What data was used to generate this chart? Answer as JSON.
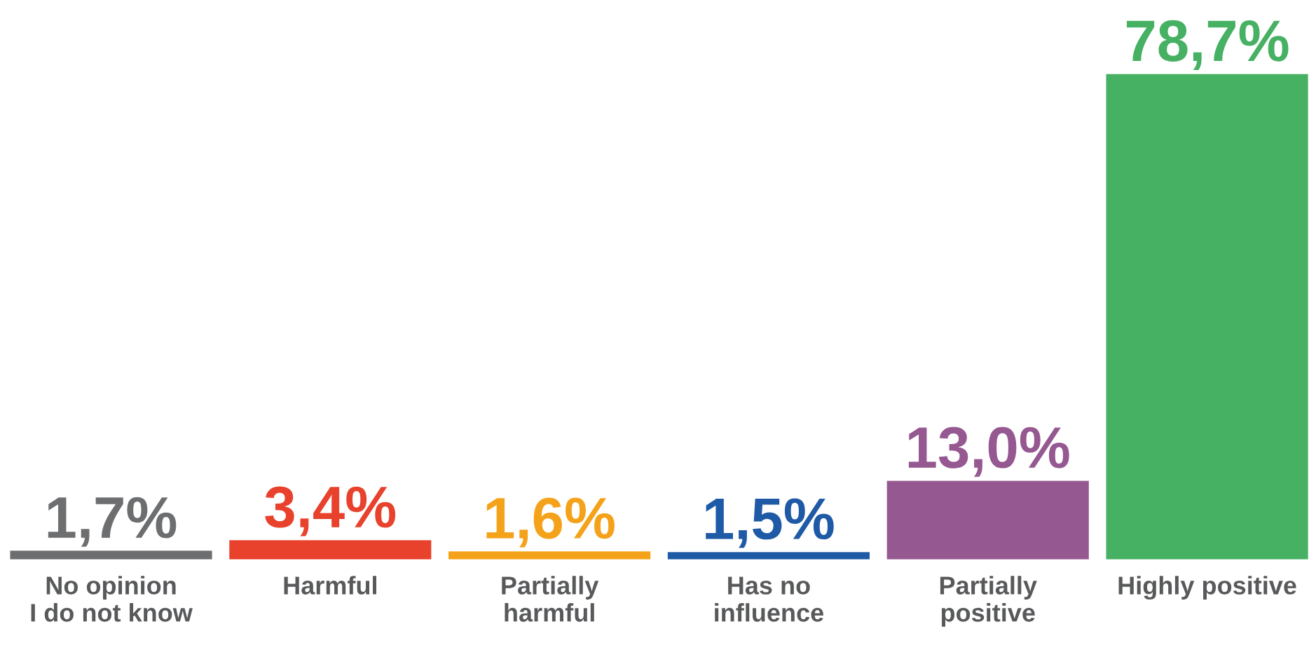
{
  "chart_data": {
    "type": "bar",
    "categories": [
      "No opinion\nI do not know",
      "Harmful",
      "Partially\nharmful",
      "Has no\ninfluence",
      "Partially\npositive",
      "Highly positive"
    ],
    "values": [
      1.7,
      3.4,
      1.6,
      1.5,
      13.0,
      78.7
    ],
    "colors": [
      "#6d6e70",
      "#e8412c",
      "#f5a21b",
      "#1f5aa6",
      "#955891",
      "#46b063"
    ],
    "value_labels": [
      "1,7%",
      "3,4%",
      "1,6%",
      "1,5%",
      "13,0%",
      "78,7%"
    ],
    "grid": false,
    "legend": false
  }
}
